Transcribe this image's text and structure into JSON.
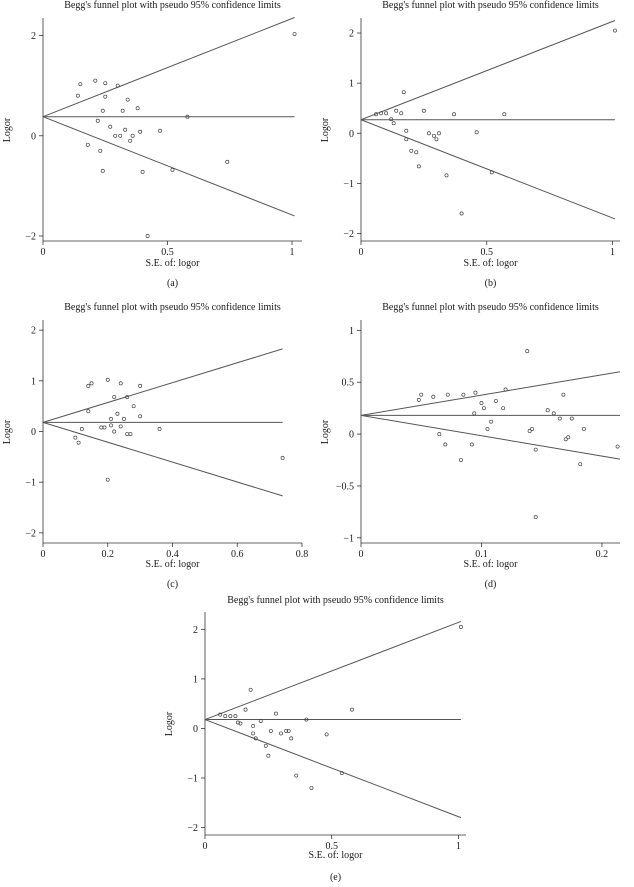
{
  "chart_data": [
    {
      "type": "scatter",
      "panel_label": "(a)",
      "title": "Begg's funnel plot with pseudo 95% confidence limits",
      "xlabel": "S.E. of: logor",
      "ylabel": "Logor",
      "xlim": [
        0,
        1.04
      ],
      "ylim": [
        -2.1,
        2.35
      ],
      "xticks": [
        0,
        0.5,
        1
      ],
      "xtick_labels": [
        "0",
        "0.5",
        "1"
      ],
      "yticks": [
        -2,
        0,
        2
      ],
      "ytick_labels": [
        "−2",
        "0",
        "2"
      ],
      "pooled": 0.38,
      "funnel_xmax": 1.01,
      "points": [
        {
          "x": 0.14,
          "y": 0.8
        },
        {
          "x": 0.15,
          "y": 1.03
        },
        {
          "x": 0.18,
          "y": -0.18
        },
        {
          "x": 0.21,
          "y": 1.1
        },
        {
          "x": 0.22,
          "y": 0.3
        },
        {
          "x": 0.23,
          "y": -0.3
        },
        {
          "x": 0.24,
          "y": 0.5
        },
        {
          "x": 0.24,
          "y": -0.7
        },
        {
          "x": 0.25,
          "y": 1.05
        },
        {
          "x": 0.25,
          "y": 0.78
        },
        {
          "x": 0.27,
          "y": 0.18
        },
        {
          "x": 0.29,
          "y": 0.0
        },
        {
          "x": 0.3,
          "y": 1.0
        },
        {
          "x": 0.31,
          "y": 0.0
        },
        {
          "x": 0.32,
          "y": 0.5
        },
        {
          "x": 0.33,
          "y": 0.12
        },
        {
          "x": 0.34,
          "y": 0.72
        },
        {
          "x": 0.35,
          "y": -0.1
        },
        {
          "x": 0.36,
          "y": 0.0
        },
        {
          "x": 0.38,
          "y": 0.55
        },
        {
          "x": 0.39,
          "y": 0.08
        },
        {
          "x": 0.4,
          "y": -0.72
        },
        {
          "x": 0.42,
          "y": -2.0
        },
        {
          "x": 0.47,
          "y": 0.1
        },
        {
          "x": 0.52,
          "y": -0.68
        },
        {
          "x": 0.58,
          "y": 0.38
        },
        {
          "x": 0.74,
          "y": -0.52
        },
        {
          "x": 1.01,
          "y": 2.03
        }
      ]
    },
    {
      "type": "scatter",
      "panel_label": "(b)",
      "title": "Begg's funnel plot with pseudo 95% confidence limits",
      "xlabel": "S.E. of: logor",
      "ylabel": "Logor",
      "xlim": [
        0,
        1.03
      ],
      "ylim": [
        -2.15,
        2.3
      ],
      "xticks": [
        0,
        0.5,
        1
      ],
      "xtick_labels": [
        "0",
        "0.5",
        "1"
      ],
      "yticks": [
        -2,
        -1,
        0,
        1,
        2
      ],
      "ytick_labels": [
        "−2",
        "−1",
        "0",
        "1",
        "2"
      ],
      "pooled": 0.27,
      "funnel_xmax": 1.01,
      "points": [
        {
          "x": 0.06,
          "y": 0.38
        },
        {
          "x": 0.08,
          "y": 0.4
        },
        {
          "x": 0.1,
          "y": 0.4
        },
        {
          "x": 0.12,
          "y": 0.28
        },
        {
          "x": 0.13,
          "y": 0.2
        },
        {
          "x": 0.14,
          "y": 0.45
        },
        {
          "x": 0.16,
          "y": 0.4
        },
        {
          "x": 0.17,
          "y": 0.82
        },
        {
          "x": 0.18,
          "y": 0.05
        },
        {
          "x": 0.18,
          "y": -0.12
        },
        {
          "x": 0.2,
          "y": -0.35
        },
        {
          "x": 0.22,
          "y": -0.38
        },
        {
          "x": 0.23,
          "y": -0.66
        },
        {
          "x": 0.25,
          "y": 0.45
        },
        {
          "x": 0.27,
          "y": 0.0
        },
        {
          "x": 0.29,
          "y": -0.05
        },
        {
          "x": 0.3,
          "y": -0.12
        },
        {
          "x": 0.31,
          "y": 0.0
        },
        {
          "x": 0.34,
          "y": -0.84
        },
        {
          "x": 0.37,
          "y": 0.38
        },
        {
          "x": 0.4,
          "y": -1.6
        },
        {
          "x": 0.46,
          "y": 0.02
        },
        {
          "x": 0.52,
          "y": -0.78
        },
        {
          "x": 0.57,
          "y": 0.38
        },
        {
          "x": 1.01,
          "y": 2.05
        }
      ]
    },
    {
      "type": "scatter",
      "panel_label": "(c)",
      "title": "Begg's funnel plot with pseudo 95% confidence limits",
      "xlabel": "S.E. of: logor",
      "ylabel": "Logor",
      "xlim": [
        0,
        0.8
      ],
      "ylim": [
        -2.2,
        2.2
      ],
      "xticks": [
        0,
        0.2,
        0.4,
        0.6,
        0.8
      ],
      "xtick_labels": [
        "0",
        "0.2",
        "0.4",
        "0.6",
        "0.8"
      ],
      "yticks": [
        -2,
        -1,
        0,
        1,
        2
      ],
      "ytick_labels": [
        "−2",
        "−1",
        "0",
        "1",
        "2"
      ],
      "pooled": 0.18,
      "funnel_xmax": 0.74,
      "points": [
        {
          "x": 0.1,
          "y": -0.12
        },
        {
          "x": 0.11,
          "y": -0.22
        },
        {
          "x": 0.12,
          "y": 0.05
        },
        {
          "x": 0.14,
          "y": 0.4
        },
        {
          "x": 0.14,
          "y": 0.9
        },
        {
          "x": 0.15,
          "y": 0.95
        },
        {
          "x": 0.18,
          "y": 0.08
        },
        {
          "x": 0.19,
          "y": 0.08
        },
        {
          "x": 0.2,
          "y": -0.95
        },
        {
          "x": 0.2,
          "y": 1.02
        },
        {
          "x": 0.21,
          "y": 0.25
        },
        {
          "x": 0.21,
          "y": 0.12
        },
        {
          "x": 0.22,
          "y": 0.68
        },
        {
          "x": 0.22,
          "y": 0.0
        },
        {
          "x": 0.23,
          "y": 0.35
        },
        {
          "x": 0.24,
          "y": 0.95
        },
        {
          "x": 0.24,
          "y": 0.1
        },
        {
          "x": 0.25,
          "y": 0.25
        },
        {
          "x": 0.26,
          "y": -0.05
        },
        {
          "x": 0.26,
          "y": 0.68
        },
        {
          "x": 0.27,
          "y": -0.05
        },
        {
          "x": 0.28,
          "y": 0.5
        },
        {
          "x": 0.3,
          "y": 0.9
        },
        {
          "x": 0.3,
          "y": 0.3
        },
        {
          "x": 0.36,
          "y": 0.05
        },
        {
          "x": 0.74,
          "y": -0.52
        }
      ]
    },
    {
      "type": "scatter",
      "panel_label": "(d)",
      "title": "Begg's funnel plot with pseudo 95% confidence limits",
      "xlabel": "S.E. of: logor",
      "ylabel": "Logor",
      "xlim": [
        0,
        0.215
      ],
      "ylim": [
        -1.05,
        1.1
      ],
      "xticks": [
        0,
        0.1,
        0.2
      ],
      "xtick_labels": [
        "0",
        "0.1",
        "0.2"
      ],
      "yticks": [
        -1,
        -0.5,
        0,
        0.5,
        1
      ],
      "ytick_labels": [
        "−1",
        "−0.5",
        "0",
        "0.5",
        "1"
      ],
      "pooled": 0.18,
      "funnel_xmax": 0.215,
      "points": [
        {
          "x": 0.048,
          "y": 0.33
        },
        {
          "x": 0.05,
          "y": 0.38
        },
        {
          "x": 0.06,
          "y": 0.36
        },
        {
          "x": 0.065,
          "y": 0.0
        },
        {
          "x": 0.07,
          "y": -0.1
        },
        {
          "x": 0.072,
          "y": 0.38
        },
        {
          "x": 0.083,
          "y": -0.25
        },
        {
          "x": 0.085,
          "y": 0.38
        },
        {
          "x": 0.092,
          "y": -0.1
        },
        {
          "x": 0.094,
          "y": 0.2
        },
        {
          "x": 0.095,
          "y": 0.4
        },
        {
          "x": 0.1,
          "y": 0.3
        },
        {
          "x": 0.102,
          "y": 0.25
        },
        {
          "x": 0.105,
          "y": 0.05
        },
        {
          "x": 0.108,
          "y": 0.12
        },
        {
          "x": 0.112,
          "y": 0.32
        },
        {
          "x": 0.118,
          "y": 0.25
        },
        {
          "x": 0.12,
          "y": 0.43
        },
        {
          "x": 0.138,
          "y": 0.8
        },
        {
          "x": 0.14,
          "y": 0.03
        },
        {
          "x": 0.142,
          "y": 0.05
        },
        {
          "x": 0.145,
          "y": -0.15
        },
        {
          "x": 0.145,
          "y": -0.8
        },
        {
          "x": 0.155,
          "y": 0.23
        },
        {
          "x": 0.16,
          "y": 0.2
        },
        {
          "x": 0.165,
          "y": 0.15
        },
        {
          "x": 0.168,
          "y": 0.38
        },
        {
          "x": 0.17,
          "y": -0.05
        },
        {
          "x": 0.172,
          "y": -0.03
        },
        {
          "x": 0.175,
          "y": 0.15
        },
        {
          "x": 0.182,
          "y": -0.29
        },
        {
          "x": 0.185,
          "y": 0.05
        },
        {
          "x": 0.213,
          "y": -0.12
        }
      ]
    },
    {
      "type": "scatter",
      "panel_label": "(e)",
      "title": "Begg's funnel plot with pseudo 95% confidence limits",
      "xlabel": "S.E. of: logor",
      "ylabel": "Logor",
      "xlim": [
        0,
        1.03
      ],
      "ylim": [
        -2.15,
        2.35
      ],
      "xticks": [
        0,
        0.5,
        1
      ],
      "xtick_labels": [
        "0",
        "0.5",
        "1"
      ],
      "yticks": [
        -2,
        -1,
        0,
        1,
        2
      ],
      "ytick_labels": [
        "−2",
        "−1",
        "0",
        "1",
        "2"
      ],
      "pooled": 0.18,
      "funnel_xmax": 1.01,
      "points": [
        {
          "x": 0.06,
          "y": 0.28
        },
        {
          "x": 0.08,
          "y": 0.25
        },
        {
          "x": 0.1,
          "y": 0.25
        },
        {
          "x": 0.12,
          "y": 0.25
        },
        {
          "x": 0.13,
          "y": 0.12
        },
        {
          "x": 0.14,
          "y": 0.1
        },
        {
          "x": 0.16,
          "y": 0.38
        },
        {
          "x": 0.18,
          "y": 0.78
        },
        {
          "x": 0.19,
          "y": 0.05
        },
        {
          "x": 0.19,
          "y": -0.1
        },
        {
          "x": 0.2,
          "y": -0.2
        },
        {
          "x": 0.22,
          "y": 0.15
        },
        {
          "x": 0.24,
          "y": -0.35
        },
        {
          "x": 0.25,
          "y": -0.55
        },
        {
          "x": 0.26,
          "y": -0.05
        },
        {
          "x": 0.28,
          "y": 0.3
        },
        {
          "x": 0.3,
          "y": -0.1
        },
        {
          "x": 0.32,
          "y": -0.05
        },
        {
          "x": 0.33,
          "y": -0.05
        },
        {
          "x": 0.34,
          "y": -0.2
        },
        {
          "x": 0.36,
          "y": -0.95
        },
        {
          "x": 0.4,
          "y": 0.18
        },
        {
          "x": 0.42,
          "y": -1.2
        },
        {
          "x": 0.48,
          "y": -0.12
        },
        {
          "x": 0.54,
          "y": -0.9
        },
        {
          "x": 0.58,
          "y": 0.38
        },
        {
          "x": 1.01,
          "y": 2.05
        }
      ]
    }
  ]
}
